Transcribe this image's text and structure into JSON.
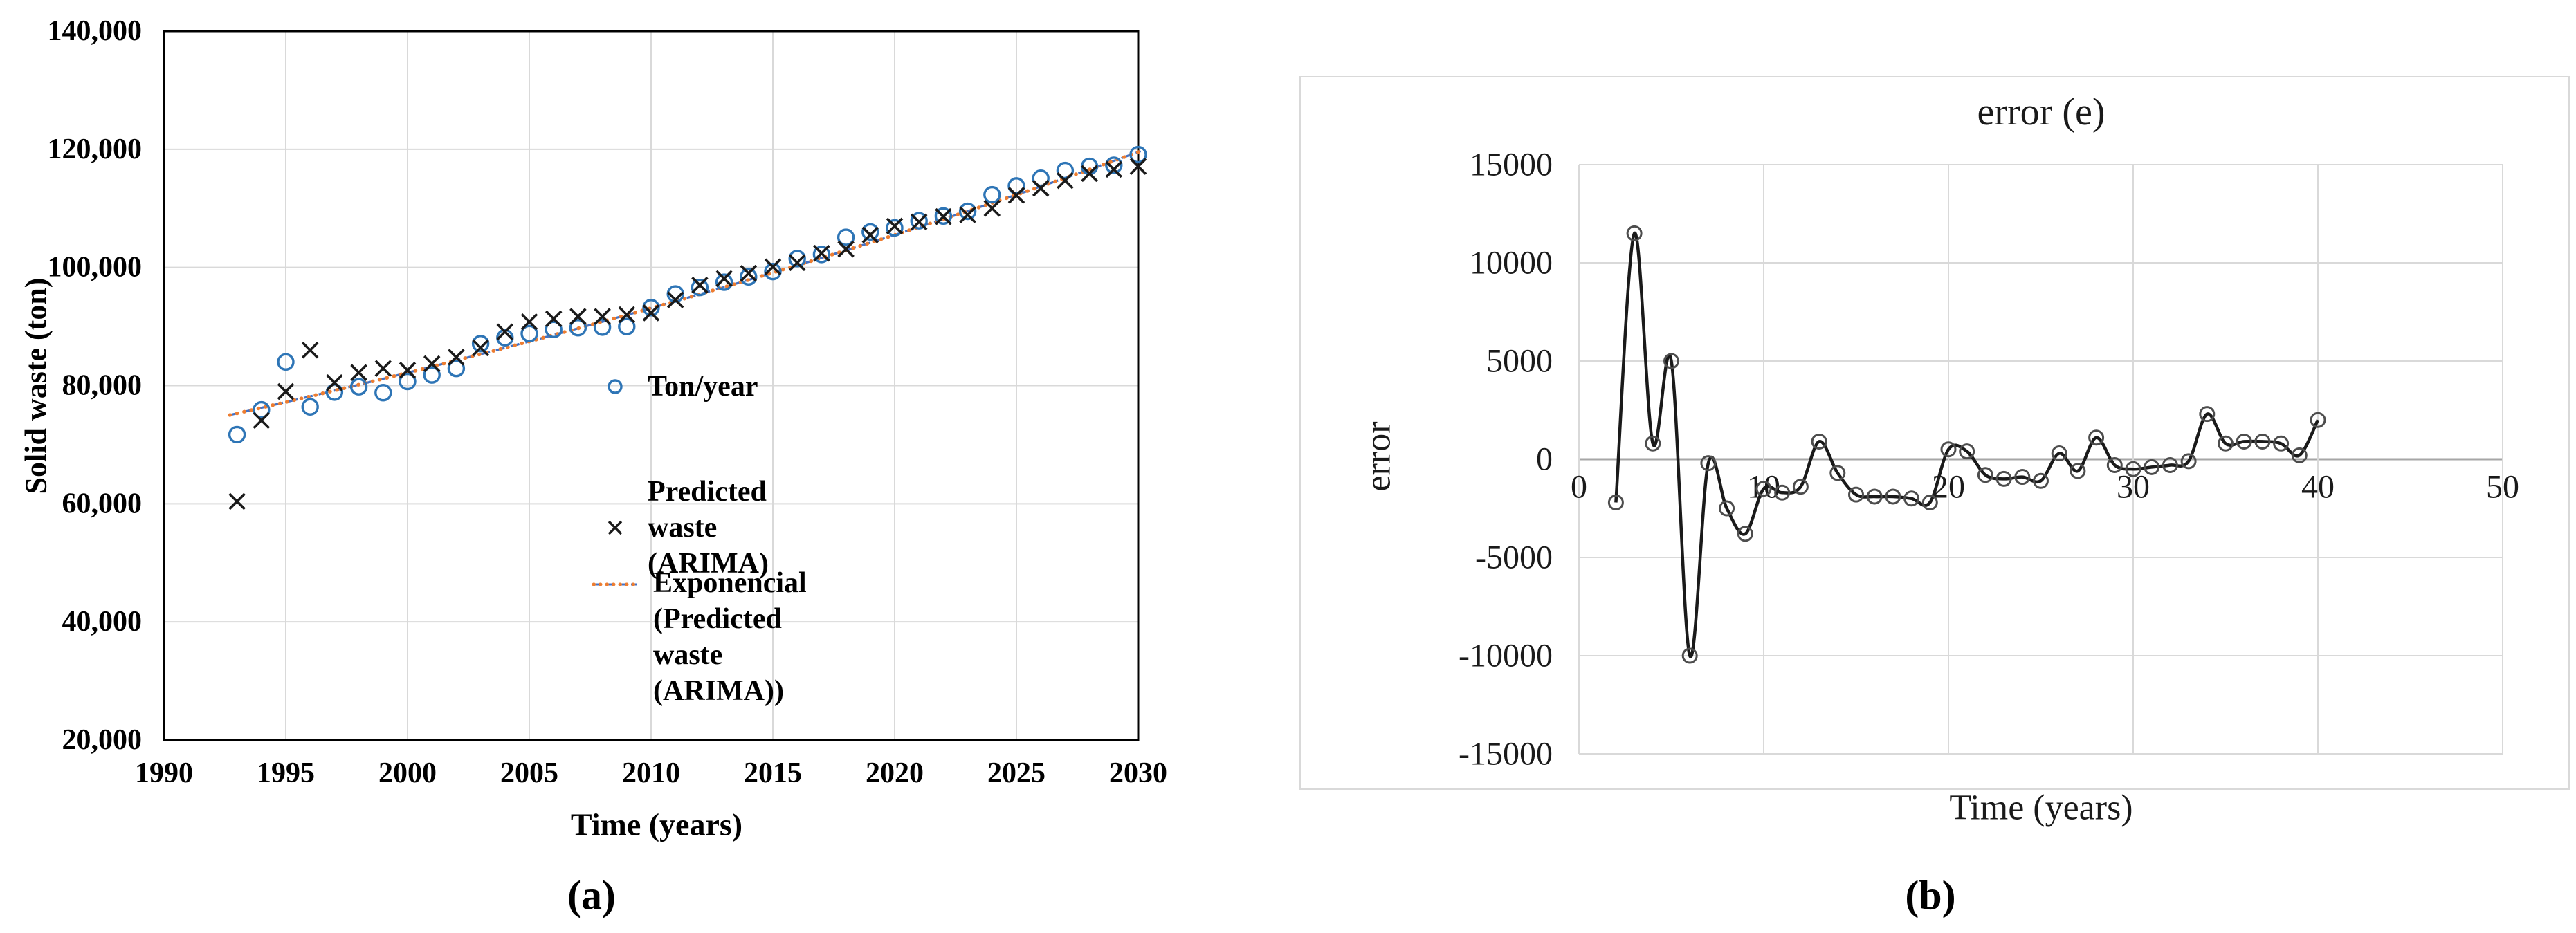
{
  "figure": {
    "caption_a": "(a)",
    "caption_b": "(b)"
  },
  "colors": {
    "accent_blue": "#2E75B6",
    "accent_orange": "#ED7D31",
    "trend_blue": "#4472C4",
    "gridline": "#D9D9D9",
    "zero_axis": "#A6A6A6",
    "error_line": "#1a1a1a",
    "error_marker_ring": "#4d4d4d",
    "axis_black": "#000000"
  },
  "chart_data": [
    {
      "id": "solid-waste-forecast",
      "type": "scatter",
      "title": "",
      "xlabel": "Time (years)",
      "ylabel": "Solid waste (ton)",
      "xlim": [
        1990,
        2030
      ],
      "ylim": [
        20000,
        140000
      ],
      "grid": true,
      "legend_position": "inside-right",
      "xticks": [
        1990,
        1995,
        2000,
        2005,
        2010,
        2015,
        2020,
        2025,
        2030
      ],
      "ytick_values": [
        20000,
        40000,
        60000,
        80000,
        100000,
        120000,
        140000
      ],
      "ytick_labels": [
        "20,000",
        "40,000",
        "60,000",
        "80,000",
        "100,000",
        "120,000",
        "140,000"
      ],
      "x": [
        1993,
        1994,
        1995,
        1996,
        1997,
        1998,
        1999,
        2000,
        2001,
        2002,
        2003,
        2004,
        2005,
        2006,
        2007,
        2008,
        2009,
        2010,
        2011,
        2012,
        2013,
        2014,
        2015,
        2016,
        2017,
        2018,
        2019,
        2020,
        2021,
        2022,
        2023,
        2024,
        2025,
        2026,
        2027,
        2028,
        2029,
        2030
      ],
      "series": [
        {
          "name": "Ton/year",
          "marker": "circle",
          "color": "#2E75B6",
          "values": [
            71700,
            75900,
            84000,
            76400,
            78900,
            79800,
            78800,
            80700,
            81800,
            82900,
            87100,
            88100,
            88800,
            89500,
            89800,
            89900,
            90000,
            93200,
            95500,
            96600,
            97500,
            98400,
            99300,
            101500,
            102200,
            105100,
            106000,
            106700,
            107900,
            108700,
            109500,
            112300,
            113800,
            115100,
            116400,
            117100,
            117300,
            119100
          ]
        },
        {
          "name": "Predicted waste (ARIMA)",
          "marker": "x",
          "color": "#1a1a1a",
          "values": [
            60400,
            74100,
            79000,
            86000,
            80500,
            82200,
            82900,
            82600,
            83700,
            84800,
            86400,
            89100,
            90800,
            91300,
            91700,
            91700,
            92000,
            92300,
            94500,
            97000,
            98100,
            99000,
            100100,
            100800,
            102400,
            103100,
            105500,
            107000,
            107700,
            108600,
            108900,
            110000,
            112200,
            113400,
            114700,
            115900,
            116600,
            117100
          ]
        },
        {
          "name": "Exponencial (Predicted waste (ARIMA))",
          "marker": "dotted-line",
          "color": "#ED7D31",
          "legend_wrap": [
            "Exponencial (Predicted waste",
            "(ARIMA))"
          ],
          "trend": {
            "base_year": 1993,
            "start_year": 1992.7,
            "end_year": 2030.1,
            "a": 75300,
            "growth": 0.01249
          }
        }
      ]
    },
    {
      "id": "error-series",
      "type": "line",
      "title": "error (e)",
      "xlabel": "Time (years)",
      "ylabel": "error",
      "xlim": [
        0,
        50
      ],
      "ylim": [
        -15000,
        15000
      ],
      "grid": true,
      "legend_position": "none",
      "xticks": [
        0,
        10,
        20,
        30,
        40,
        50
      ],
      "yticks": [
        15000,
        10000,
        5000,
        0,
        -5000,
        -10000,
        -15000
      ],
      "x": [
        2,
        3,
        4,
        5,
        6,
        7,
        8,
        9,
        10,
        11,
        12,
        13,
        14,
        15,
        16,
        17,
        18,
        19,
        20,
        21,
        22,
        23,
        24,
        25,
        26,
        27,
        28,
        29,
        30,
        31,
        32,
        33,
        34,
        35,
        36,
        37,
        38,
        39,
        40
      ],
      "values": [
        -2200,
        11500,
        800,
        5000,
        -10000,
        -200,
        -2500,
        -3800,
        -1500,
        -1700,
        -1400,
        900,
        -700,
        -1800,
        -1900,
        -1900,
        -2000,
        -2200,
        500,
        400,
        -800,
        -1000,
        -900,
        -1100,
        300,
        -600,
        1100,
        -300,
        -500,
        -400,
        -300,
        -100,
        2300,
        800,
        900,
        900,
        800,
        200,
        2000
      ]
    }
  ]
}
